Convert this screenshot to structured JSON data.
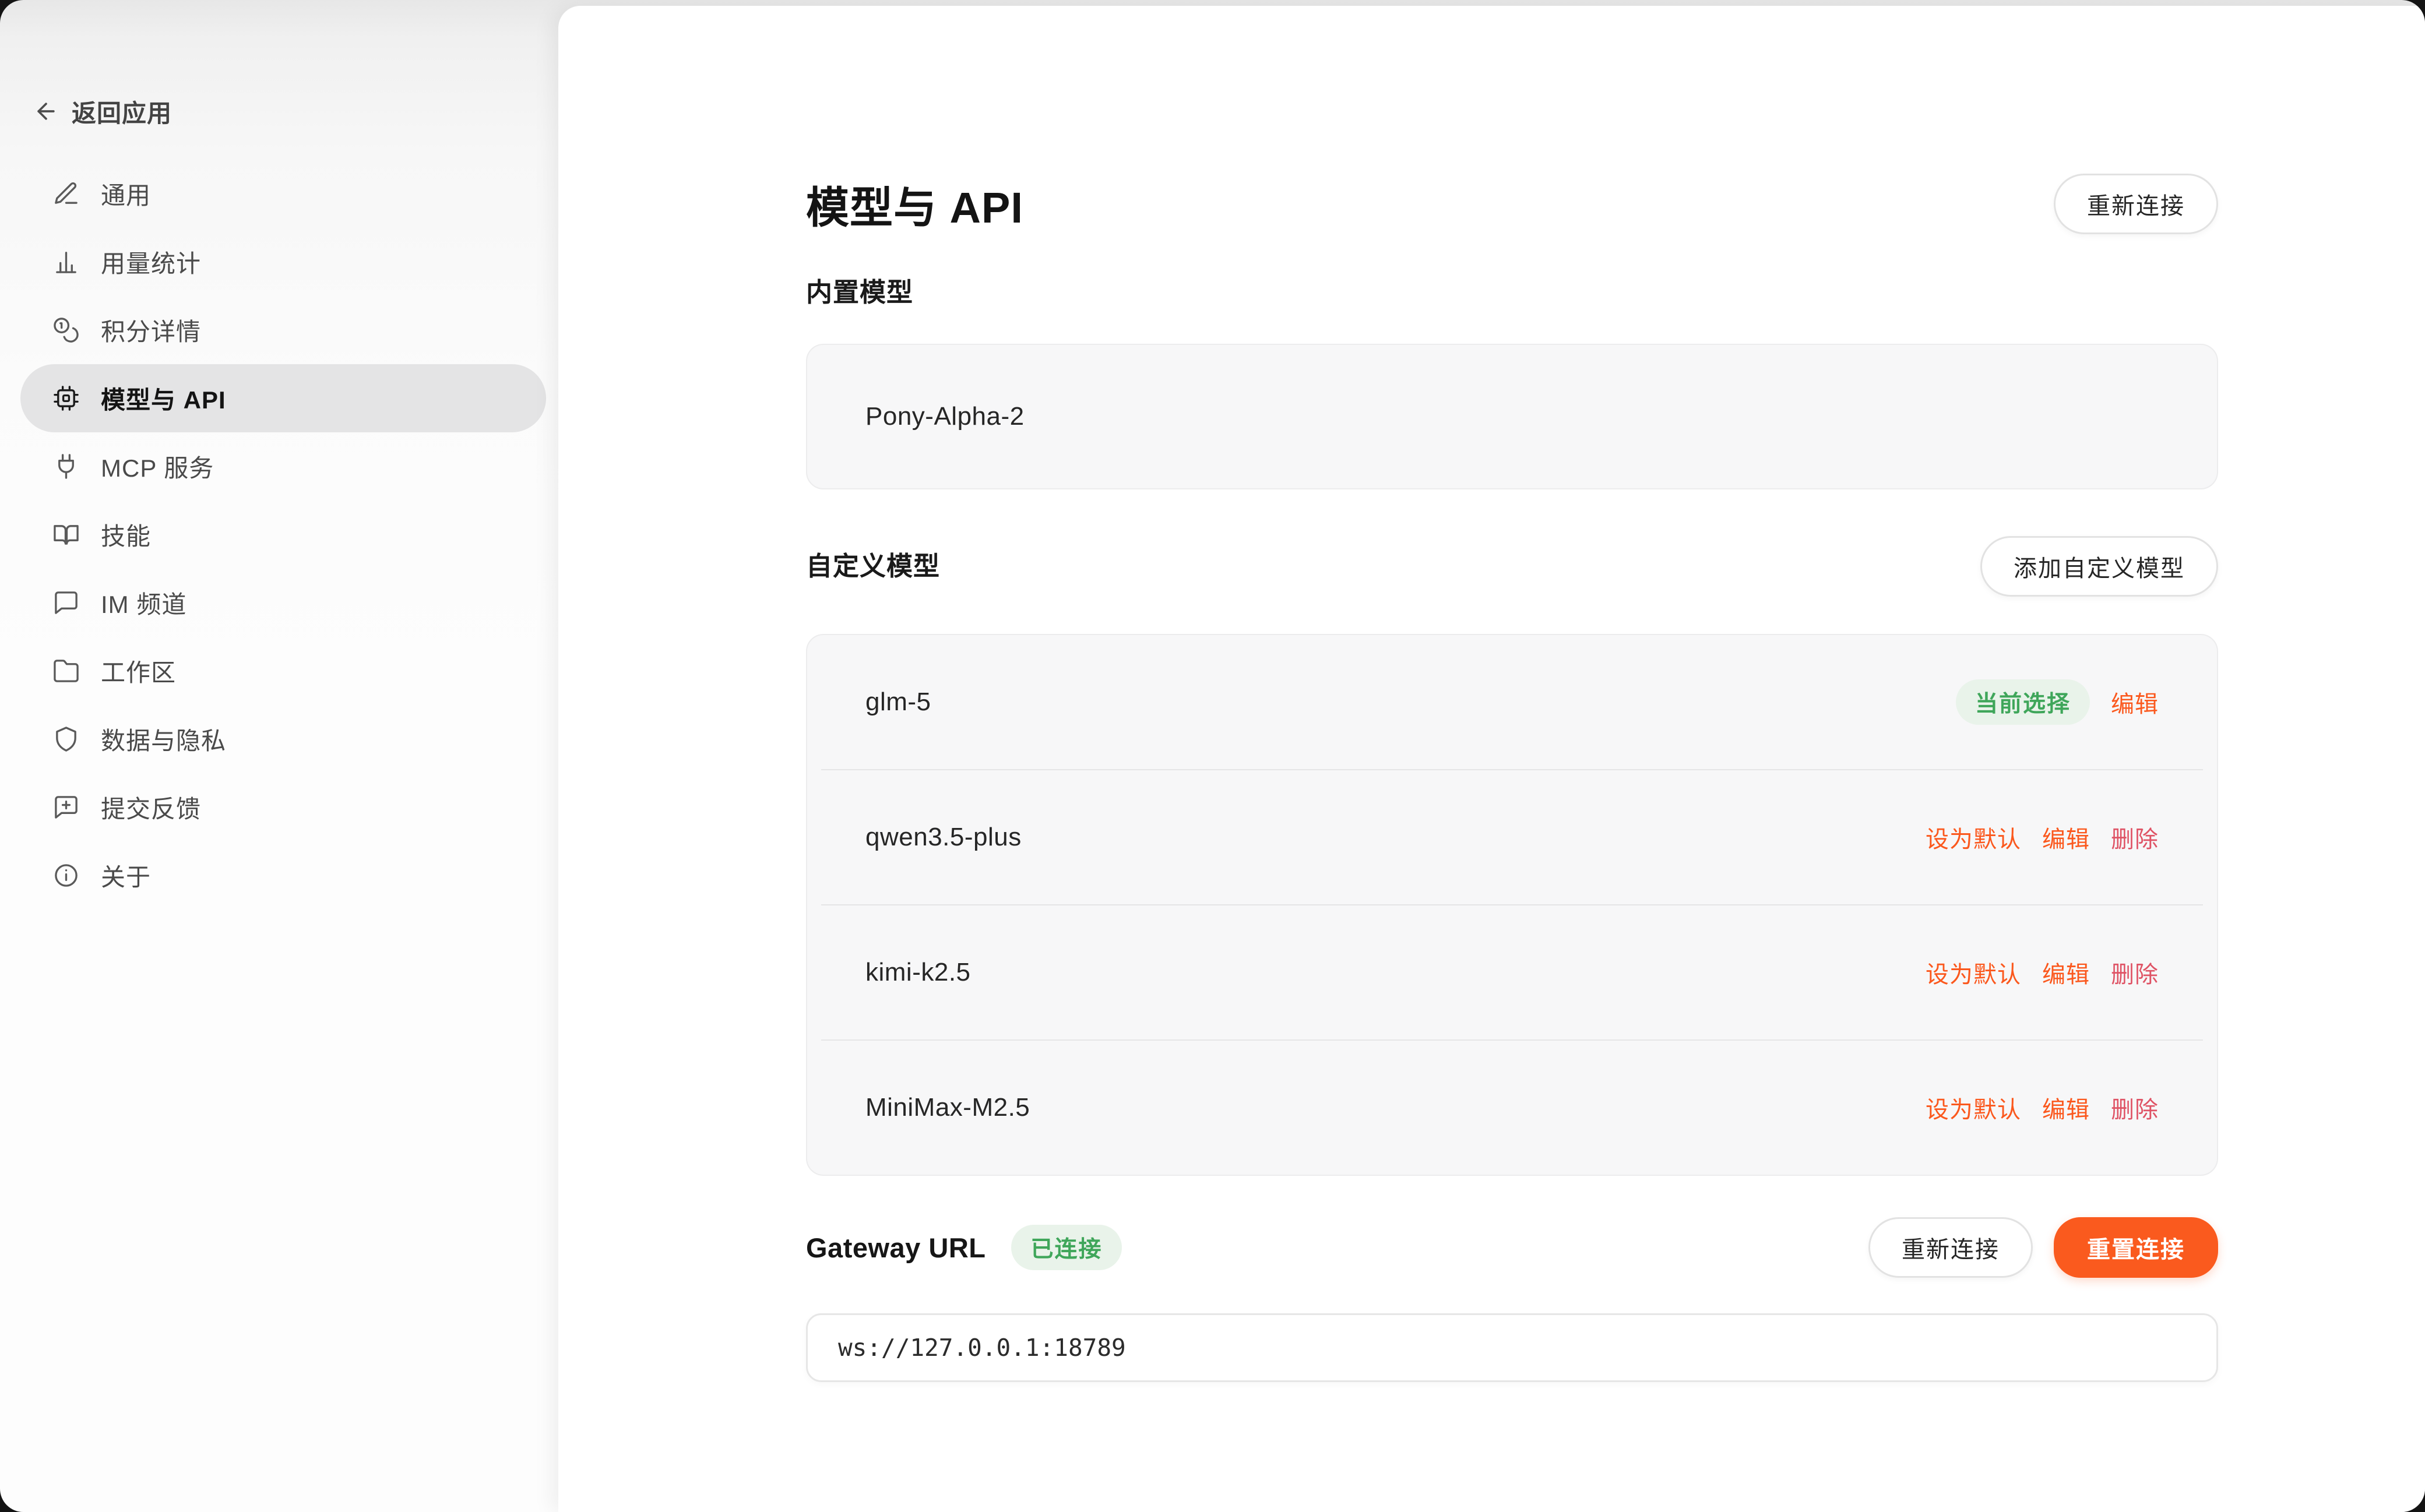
{
  "sidebar": {
    "back": {
      "label": "返回应用"
    },
    "items": [
      {
        "label": "通用",
        "icon": "pencil-icon",
        "active": false
      },
      {
        "label": "用量统计",
        "icon": "bar-chart-icon",
        "active": false
      },
      {
        "label": "积分详情",
        "icon": "coins-icon",
        "active": false
      },
      {
        "label": "模型与 API",
        "icon": "chip-icon",
        "active": true
      },
      {
        "label": "MCP 服务",
        "icon": "plug-icon",
        "active": false
      },
      {
        "label": "技能",
        "icon": "book-icon",
        "active": false
      },
      {
        "label": "IM 频道",
        "icon": "chat-icon",
        "active": false
      },
      {
        "label": "工作区",
        "icon": "folder-icon",
        "active": false
      },
      {
        "label": "数据与隐私",
        "icon": "shield-icon",
        "active": false
      },
      {
        "label": "提交反馈",
        "icon": "feedback-icon",
        "active": false
      },
      {
        "label": "关于",
        "icon": "info-icon",
        "active": false
      }
    ]
  },
  "main": {
    "title": "模型与 API",
    "reconnect_button": "重新连接",
    "builtin": {
      "heading": "内置模型",
      "models": [
        "Pony-Alpha-2"
      ]
    },
    "custom": {
      "heading": "自定义模型",
      "add_button": "添加自定义模型",
      "selected_badge": "当前选择",
      "actions": {
        "set_default": "设为默认",
        "edit": "编辑",
        "delete": "删除"
      },
      "models": [
        {
          "name": "glm-5",
          "selected": true
        },
        {
          "name": "qwen3.5-plus",
          "selected": false
        },
        {
          "name": "kimi-k2.5",
          "selected": false
        },
        {
          "name": "MiniMax-M2.5",
          "selected": false
        }
      ]
    },
    "gateway": {
      "label": "Gateway URL",
      "status_badge": "已连接",
      "reconnect_button": "重新连接",
      "reset_button": "重置连接",
      "url": "ws://127.0.0.1:18789"
    }
  },
  "colors": {
    "accent_orange": "#fa5a1e",
    "link_orange": "#fb581d",
    "delete_red": "#df5365",
    "green": "#3fa65a",
    "green_bg": "#e9f3ea",
    "pill_gray": "#e4e4e5"
  }
}
